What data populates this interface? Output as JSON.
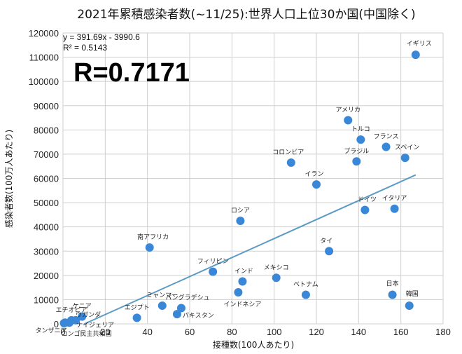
{
  "chart_data": {
    "type": "scatter",
    "title": "2021年累積感染者数(~11/25):世界人口上位30か国(中国除く)",
    "xlabel": "接種数(100人あたり)",
    "ylabel": "感染者数(100万人あたり)",
    "xlim": [
      0,
      180
    ],
    "ylim": [
      0,
      120000
    ],
    "x_ticks": [
      0,
      20,
      40,
      60,
      80,
      100,
      120,
      140,
      160,
      180
    ],
    "y_ticks": [
      0,
      10000,
      20000,
      30000,
      40000,
      50000,
      60000,
      70000,
      80000,
      90000,
      100000,
      110000,
      120000
    ],
    "grid": "both",
    "point_color": "#3a87d8",
    "trendline": {
      "equation": "y = 391.69x - 3990.6",
      "r_squared": "R² = 0.5143",
      "slope": 391.69,
      "intercept": -3990.6,
      "x_range": [
        10,
        167
      ],
      "color": "#5b9bc4"
    },
    "r_value": "R=0.7171",
    "points": [
      {
        "label": "イギリス",
        "x": 167,
        "y": 111000
      },
      {
        "label": "アメリカ",
        "x": 135,
        "y": 84000
      },
      {
        "label": "トルコ",
        "x": 141,
        "y": 76000
      },
      {
        "label": "フランス",
        "x": 153,
        "y": 73000
      },
      {
        "label": "スペイン",
        "x": 162,
        "y": 68500
      },
      {
        "label": "ブラジル",
        "x": 139,
        "y": 67000
      },
      {
        "label": "コロンビア",
        "x": 108,
        "y": 66500
      },
      {
        "label": "イラン",
        "x": 120,
        "y": 57500
      },
      {
        "label": "ドイツ",
        "x": 143,
        "y": 47000
      },
      {
        "label": "イタリア",
        "x": 157,
        "y": 47500
      },
      {
        "label": "ロシア",
        "x": 84,
        "y": 42500
      },
      {
        "label": "南アフリカ",
        "x": 41,
        "y": 31500
      },
      {
        "label": "タイ",
        "x": 126,
        "y": 30000
      },
      {
        "label": "フィリピン",
        "x": 71,
        "y": 21500
      },
      {
        "label": "インド",
        "x": 85,
        "y": 17500
      },
      {
        "label": "メキシコ",
        "x": 101,
        "y": 19000
      },
      {
        "label": "インドネシア",
        "x": 83,
        "y": 13000
      },
      {
        "label": "ベトナム",
        "x": 115,
        "y": 12000
      },
      {
        "label": "日本",
        "x": 156,
        "y": 12000
      },
      {
        "label": "韓国",
        "x": 164,
        "y": 7500
      },
      {
        "label": "ミャンマー",
        "x": 47,
        "y": 7500
      },
      {
        "label": "バングラデシュ",
        "x": 56,
        "y": 6500
      },
      {
        "label": "パキスタン",
        "x": 54,
        "y": 4000
      },
      {
        "label": "エジプト",
        "x": 35,
        "y": 2500
      },
      {
        "label": "エチオピア",
        "x": 4,
        "y": 1500
      },
      {
        "label": "ケニア",
        "x": 9,
        "y": 3000
      },
      {
        "label": "ウガンダ",
        "x": 6,
        "y": 1500
      },
      {
        "label": "タンザニア",
        "x": 1,
        "y": 500
      },
      {
        "label": "ナイジェリア",
        "x": 3,
        "y": 500
      },
      {
        "label": "コンゴ民主共和国",
        "x": 0.5,
        "y": 300
      }
    ]
  }
}
